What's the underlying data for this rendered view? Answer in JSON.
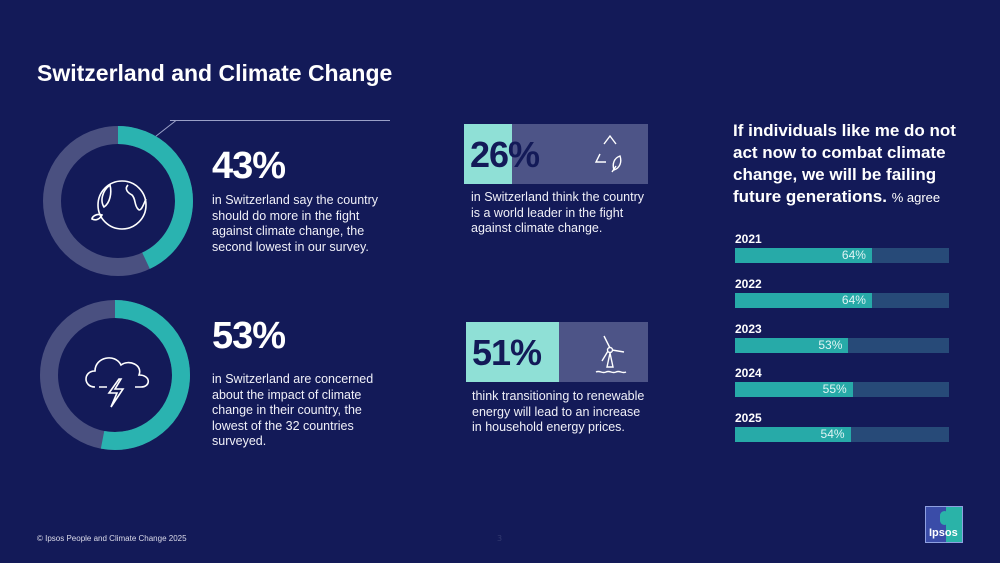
{
  "title": "Switzerland and Climate Change",
  "colors": {
    "background": "#131a58",
    "accent_teal": "#2ab3b0",
    "ring_track": "#4a5080",
    "box_fill": "#8fe0d6",
    "bar_track": "#274a78"
  },
  "stats": [
    {
      "value": "43%",
      "percent": 43,
      "icon": "globe-leaf-icon",
      "text": "in Switzerland say the country should do more in the fight against climate change, the second lowest in our survey."
    },
    {
      "value": "53%",
      "percent": 53,
      "icon": "storm-cloud-icon",
      "text": "in Switzerland are concerned about the impact of climate change in their country, the lowest of the 32 countries surveyed."
    },
    {
      "value": "26%",
      "percent": 26,
      "icon": "recycle-leaf-icon",
      "text": "in Switzerland think the country is a world leader in the fight against climate change."
    },
    {
      "value": "51%",
      "percent": 51,
      "icon": "wind-turbine-icon",
      "text": "think transitioning to renewable energy will lead to an increase in household energy prices."
    }
  ],
  "trend": {
    "question": "If individuals like me do not act now to combat climate change, we will be failing future generations.",
    "unit": "% agree"
  },
  "chart_data": {
    "type": "bar",
    "orientation": "horizontal",
    "title": "If individuals like me do not act now to combat climate change, we will be failing future generations.",
    "subtitle": "% agree",
    "categories": [
      "2021",
      "2022",
      "2023",
      "2024",
      "2025"
    ],
    "values": [
      64,
      64,
      53,
      55,
      54
    ],
    "labels": [
      "64%",
      "64%",
      "53%",
      "55%",
      "54%"
    ],
    "xlim": [
      0,
      100
    ]
  },
  "footer": {
    "copyright": "© Ipsos People and Climate Change 2025",
    "page": "3",
    "logo": "Ipsos"
  }
}
